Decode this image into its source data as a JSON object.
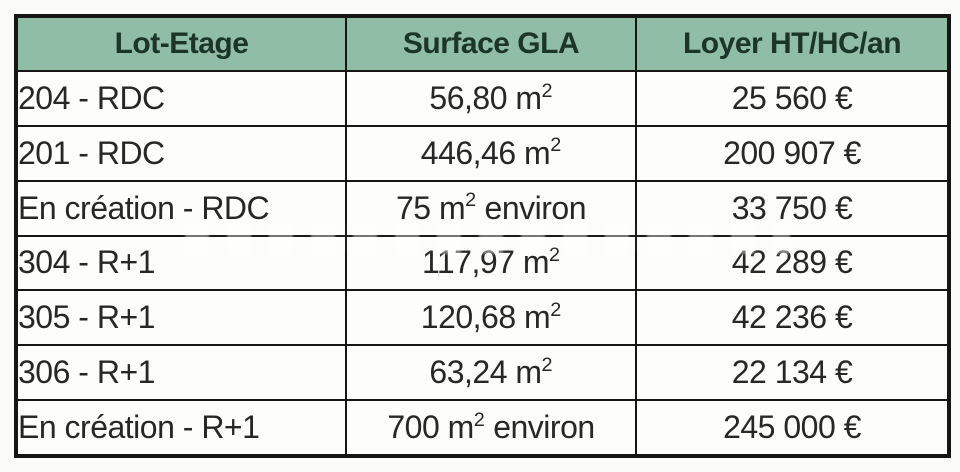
{
  "chart_data": {
    "type": "table",
    "title": "",
    "columns": [
      "Lot-Etage",
      "Surface GLA",
      "Loyer HT/HC/an"
    ],
    "rows": [
      [
        "204 - RDC",
        "56,80 m²",
        "25 560 €"
      ],
      [
        "201 - RDC",
        "446,46 m²",
        "200 907 €"
      ],
      [
        "En création - RDC",
        "75 m² environ",
        "33 750 €"
      ],
      [
        "304 - R+1",
        "117,97 m²",
        "42 289 €"
      ],
      [
        "305 - R+1",
        "120,68 m²",
        "42 236 €"
      ],
      [
        "306 - R+1",
        "63,24 m²",
        "22 134 €"
      ],
      [
        "En création - R+1",
        "700 m² environ",
        "245 000 €"
      ]
    ]
  },
  "table": {
    "headers": [
      "Lot-Etage",
      "Surface GLA",
      "Loyer HT/HC/an"
    ],
    "rows": [
      {
        "lot": "204 - RDC",
        "surface_pre": "56,80 m",
        "surface_sup": "2",
        "surface_post": "",
        "rent": "25 560 €"
      },
      {
        "lot": "201 - RDC",
        "surface_pre": "446,46 m",
        "surface_sup": "2",
        "surface_post": "",
        "rent": "200 907 €"
      },
      {
        "lot": "En création - RDC",
        "surface_pre": "75 m",
        "surface_sup": "2",
        "surface_post": " environ",
        "rent": "33 750 €"
      },
      {
        "lot": "304 - R+1",
        "surface_pre": "117,97 m",
        "surface_sup": "2",
        "surface_post": "",
        "rent": "42 289 €"
      },
      {
        "lot": "305 - R+1",
        "surface_pre": "120,68 m",
        "surface_sup": "2",
        "surface_post": "",
        "rent": "42 236 €"
      },
      {
        "lot": "306 - R+1",
        "surface_pre": "63,24 m",
        "surface_sup": "2",
        "surface_post": "",
        "rent": "22 134 €"
      },
      {
        "lot": "En création - R+1",
        "surface_pre": "700 m",
        "surface_sup": "2",
        "surface_post": " environ",
        "rent": "245 000 €"
      }
    ],
    "colors": {
      "header_bg": "#8fbda5",
      "header_text": "#1d3429",
      "body_text": "#272727",
      "border": "#161616",
      "row_bg": "#fdfdfc"
    }
  }
}
